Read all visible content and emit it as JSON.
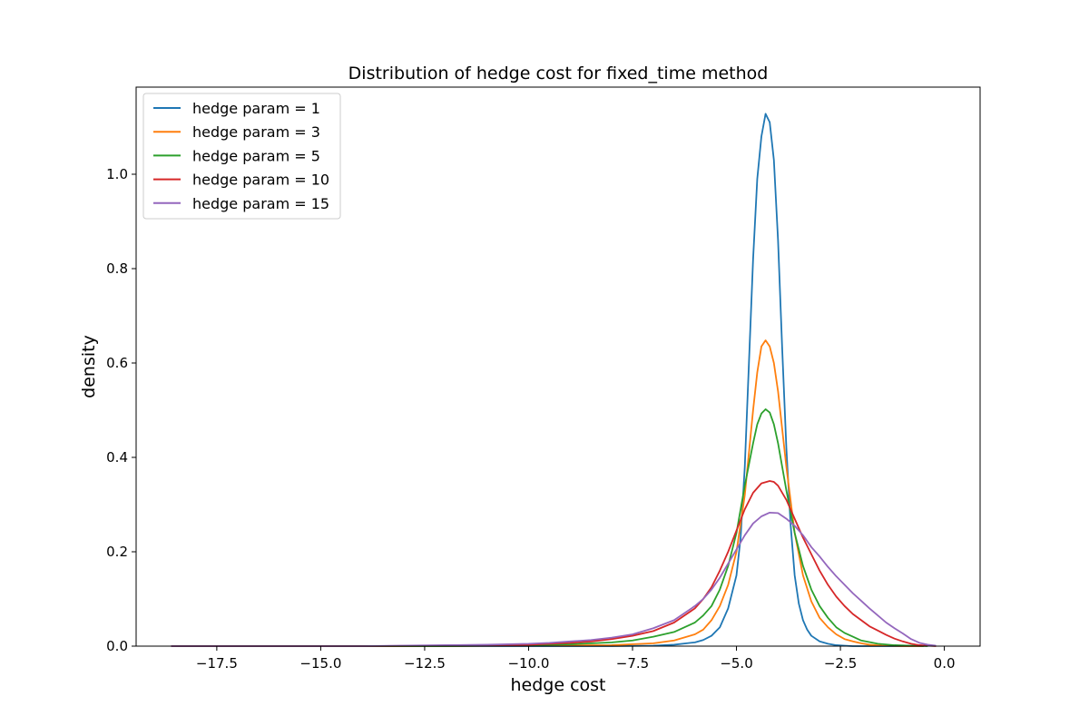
{
  "chart_data": {
    "type": "line",
    "title": "Distribution of hedge cost for fixed_time method",
    "xlabel": "hedge cost",
    "ylabel": "density",
    "xlim": [
      -19.44,
      0.86
    ],
    "ylim": [
      0,
      1.1846
    ],
    "xticks": [
      -17.5,
      -15.0,
      -12.5,
      -10.0,
      -7.5,
      -5.0,
      -2.5,
      0.0
    ],
    "xtick_labels": [
      "−17.5",
      "−15.0",
      "−12.5",
      "−10.0",
      "−7.5",
      "−5.0",
      "−2.5",
      "0.0"
    ],
    "yticks": [
      0.0,
      0.2,
      0.4,
      0.6,
      0.8,
      1.0
    ],
    "ytick_labels": [
      "0.0",
      "0.2",
      "0.4",
      "0.6",
      "0.8",
      "1.0"
    ],
    "grid": false,
    "legend_position": "top-left",
    "series": [
      {
        "name": "hedge param = 1",
        "color": "#1f77b4",
        "x": [
          -18.6,
          -12.0,
          -8.0,
          -7.0,
          -6.5,
          -6.0,
          -5.8,
          -5.6,
          -5.4,
          -5.2,
          -5.0,
          -4.9,
          -4.8,
          -4.7,
          -4.6,
          -4.5,
          -4.4,
          -4.3,
          -4.2,
          -4.1,
          -4.0,
          -3.9,
          -3.8,
          -3.7,
          -3.6,
          -3.5,
          -3.4,
          -3.3,
          -3.2,
          -3.0,
          -2.8,
          -2.6,
          -2.4,
          -2.2,
          -2.0,
          -1.5,
          -0.5
        ],
        "y": [
          0.0,
          0.0,
          0.0,
          0.001,
          0.003,
          0.008,
          0.013,
          0.022,
          0.04,
          0.08,
          0.15,
          0.23,
          0.38,
          0.6,
          0.82,
          0.99,
          1.08,
          1.128,
          1.11,
          1.03,
          0.86,
          0.63,
          0.42,
          0.26,
          0.15,
          0.09,
          0.055,
          0.035,
          0.022,
          0.01,
          0.005,
          0.002,
          0.001,
          0.0,
          0.0,
          0.0,
          0.0
        ]
      },
      {
        "name": "hedge param = 3",
        "color": "#ff7f0e",
        "x": [
          -18.6,
          -12.0,
          -10.0,
          -8.0,
          -7.0,
          -6.5,
          -6.0,
          -5.8,
          -5.6,
          -5.4,
          -5.2,
          -5.0,
          -4.8,
          -4.6,
          -4.5,
          -4.4,
          -4.3,
          -4.2,
          -4.1,
          -4.0,
          -3.9,
          -3.8,
          -3.6,
          -3.4,
          -3.2,
          -3.0,
          -2.8,
          -2.6,
          -2.4,
          -2.2,
          -2.0,
          -1.8,
          -1.5,
          -1.0,
          -0.5
        ],
        "y": [
          0.0,
          0.0,
          0.001,
          0.002,
          0.006,
          0.012,
          0.025,
          0.035,
          0.055,
          0.085,
          0.13,
          0.2,
          0.32,
          0.5,
          0.58,
          0.635,
          0.648,
          0.635,
          0.6,
          0.54,
          0.46,
          0.38,
          0.24,
          0.15,
          0.095,
          0.06,
          0.04,
          0.025,
          0.015,
          0.01,
          0.006,
          0.003,
          0.001,
          0.0,
          0.0
        ]
      },
      {
        "name": "hedge param = 5",
        "color": "#2ca02c",
        "x": [
          -18.6,
          -12.0,
          -10.0,
          -9.0,
          -8.0,
          -7.5,
          -7.0,
          -6.5,
          -6.0,
          -5.8,
          -5.6,
          -5.4,
          -5.2,
          -5.0,
          -4.8,
          -4.6,
          -4.5,
          -4.4,
          -4.3,
          -4.2,
          -4.1,
          -4.0,
          -3.9,
          -3.8,
          -3.6,
          -3.4,
          -3.2,
          -3.0,
          -2.8,
          -2.6,
          -2.4,
          -2.2,
          -2.0,
          -1.6,
          -1.2,
          -0.8,
          -0.4
        ],
        "y": [
          0.0,
          0.0,
          0.002,
          0.004,
          0.008,
          0.012,
          0.02,
          0.03,
          0.05,
          0.065,
          0.085,
          0.12,
          0.17,
          0.24,
          0.34,
          0.43,
          0.47,
          0.493,
          0.502,
          0.495,
          0.47,
          0.43,
          0.38,
          0.33,
          0.24,
          0.17,
          0.12,
          0.085,
          0.06,
          0.04,
          0.028,
          0.02,
          0.012,
          0.005,
          0.002,
          0.001,
          0.0
        ]
      },
      {
        "name": "hedge param = 10",
        "color": "#d62728",
        "x": [
          -18.6,
          -14.0,
          -12.0,
          -10.0,
          -9.0,
          -8.5,
          -8.0,
          -7.5,
          -7.0,
          -6.5,
          -6.0,
          -5.8,
          -5.6,
          -5.4,
          -5.2,
          -5.0,
          -4.8,
          -4.6,
          -4.4,
          -4.2,
          -4.1,
          -4.0,
          -3.8,
          -3.6,
          -3.4,
          -3.2,
          -3.0,
          -2.8,
          -2.6,
          -2.4,
          -2.2,
          -2.0,
          -1.8,
          -1.6,
          -1.4,
          -1.2,
          -1.0,
          -0.8,
          -0.6,
          -0.4,
          -0.2
        ],
        "y": [
          0.0,
          0.0,
          0.001,
          0.003,
          0.007,
          0.01,
          0.015,
          0.022,
          0.032,
          0.05,
          0.08,
          0.1,
          0.125,
          0.16,
          0.2,
          0.245,
          0.29,
          0.325,
          0.345,
          0.35,
          0.348,
          0.34,
          0.31,
          0.27,
          0.23,
          0.195,
          0.16,
          0.13,
          0.105,
          0.085,
          0.068,
          0.055,
          0.042,
          0.033,
          0.024,
          0.016,
          0.01,
          0.005,
          0.002,
          0.001,
          0.0
        ]
      },
      {
        "name": "hedge param = 15",
        "color": "#9467bd",
        "x": [
          -18.6,
          -14.0,
          -12.0,
          -11.0,
          -10.0,
          -9.5,
          -9.0,
          -8.5,
          -8.0,
          -7.5,
          -7.0,
          -6.5,
          -6.0,
          -5.8,
          -5.6,
          -5.4,
          -5.2,
          -5.0,
          -4.8,
          -4.6,
          -4.4,
          -4.2,
          -4.0,
          -3.8,
          -3.6,
          -3.4,
          -3.2,
          -3.0,
          -2.8,
          -2.6,
          -2.4,
          -2.2,
          -2.0,
          -1.8,
          -1.6,
          -1.4,
          -1.2,
          -1.0,
          -0.8,
          -0.6,
          -0.4,
          -0.2
        ],
        "y": [
          0.0,
          0.0,
          0.002,
          0.003,
          0.005,
          0.007,
          0.01,
          0.013,
          0.018,
          0.025,
          0.038,
          0.055,
          0.085,
          0.1,
          0.12,
          0.145,
          0.175,
          0.205,
          0.235,
          0.26,
          0.275,
          0.283,
          0.282,
          0.27,
          0.255,
          0.235,
          0.21,
          0.19,
          0.168,
          0.148,
          0.13,
          0.112,
          0.096,
          0.08,
          0.065,
          0.05,
          0.038,
          0.027,
          0.015,
          0.007,
          0.003,
          0.001
        ]
      }
    ]
  }
}
